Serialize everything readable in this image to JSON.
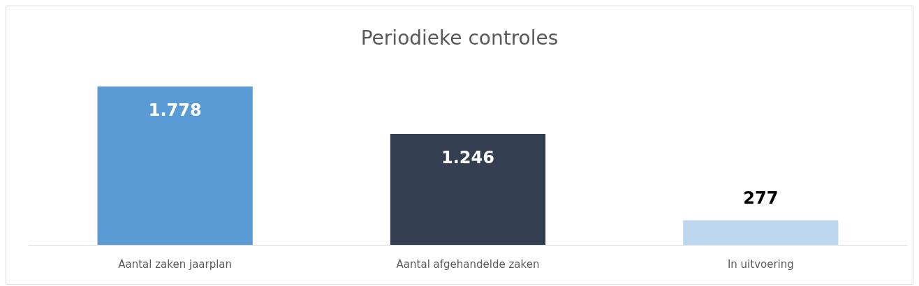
{
  "chart_data": {
    "type": "bar",
    "title": "Periodieke controles",
    "categories": [
      "Aantal zaken jaarplan",
      "Aantal afgehandelde zaken",
      "In uitvoering"
    ],
    "values": [
      1778,
      1246,
      277
    ],
    "colors": [
      "#5b9bd5",
      "#333f50",
      "#bdd7ee"
    ],
    "value_labels": [
      "1.778",
      "1.246",
      "277"
    ]
  }
}
